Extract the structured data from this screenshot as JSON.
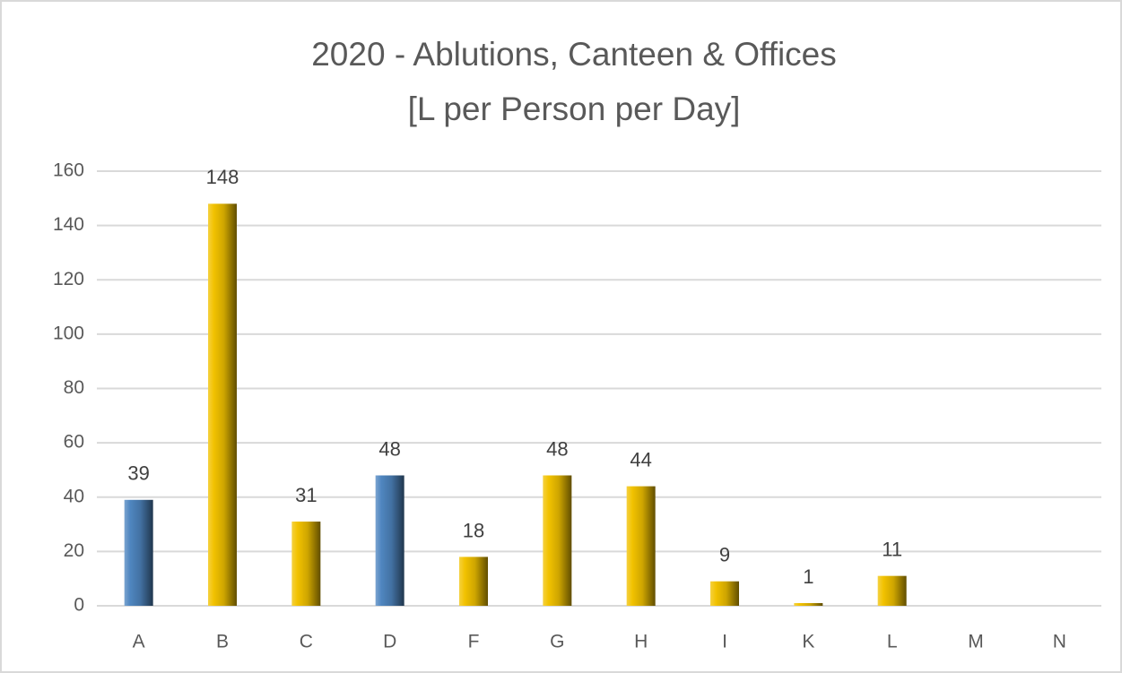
{
  "chart_data": {
    "type": "bar",
    "title": "2020 - Ablutions, Canteen & Offices",
    "subtitle": "[L per Person per Day]",
    "categories": [
      "A",
      "B",
      "C",
      "D",
      "F",
      "G",
      "H",
      "I",
      "K",
      "L",
      "M",
      "N"
    ],
    "values": [
      39,
      148,
      31,
      48,
      18,
      48,
      44,
      9,
      1,
      11,
      null,
      null
    ],
    "colors": [
      "#4f86c0",
      "#f2c200",
      "#f2c200",
      "#4f86c0",
      "#f2c200",
      "#f2c200",
      "#f2c200",
      "#f2c200",
      "#f2c200",
      "#f2c200",
      "#f2c200",
      "#f2c200"
    ],
    "ylim": [
      0,
      160
    ],
    "yticks": [
      0,
      20,
      40,
      60,
      80,
      100,
      120,
      140,
      160
    ],
    "grid": true
  }
}
